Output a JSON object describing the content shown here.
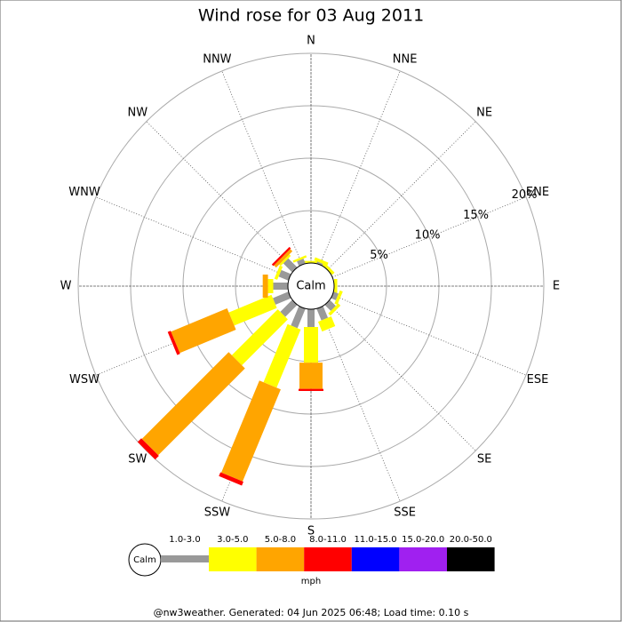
{
  "chart_data": {
    "type": "windrose",
    "title": "Wind rose for 03 Aug 2011",
    "categories": [
      "N",
      "NNE",
      "NE",
      "ENE",
      "E",
      "ESE",
      "SE",
      "SSE",
      "S",
      "SSW",
      "SW",
      "WSW",
      "W",
      "WNW",
      "NW",
      "NNW"
    ],
    "calm_label": "Calm",
    "series": [
      {
        "name": "1.0-3.0",
        "color": "#999999",
        "values": [
          0,
          0.2,
          0,
          0,
          0,
          0.5,
          0.8,
          1.2,
          1.7,
          2.0,
          1.6,
          1.6,
          1.4,
          1.0,
          1.2,
          0.5
        ]
      },
      {
        "name": "3.0-5.0",
        "color": "#ffff00",
        "values": [
          0.2,
          0.3,
          0.3,
          0,
          0.3,
          0.3,
          0.3,
          1.0,
          3.4,
          6.0,
          6.2,
          4.4,
          0.5,
          0.3,
          0.2,
          0.2
        ]
      },
      {
        "name": "5.0-8.0",
        "color": "#ffa500",
        "values": [
          0,
          0,
          0,
          0,
          0,
          0,
          0,
          0,
          2.5,
          9.5,
          11.7,
          5.8,
          0.5,
          0,
          0.3,
          0
        ]
      },
      {
        "name": "8.0-11.0",
        "color": "#ff0000",
        "values": [
          0,
          0,
          0,
          0,
          0,
          0,
          0,
          0,
          0.2,
          0.4,
          0.5,
          0.3,
          0,
          0,
          0.2,
          0
        ]
      },
      {
        "name": "11.0-15.0",
        "color": "#0000ff",
        "values": [
          0,
          0,
          0,
          0,
          0,
          0,
          0,
          0,
          0,
          0,
          0,
          0,
          0,
          0,
          0,
          0
        ]
      },
      {
        "name": "15.0-20.0",
        "color": "#a020f0",
        "values": [
          0,
          0,
          0,
          0,
          0,
          0,
          0,
          0,
          0,
          0,
          0,
          0,
          0,
          0,
          0,
          0
        ]
      },
      {
        "name": "20.0-50.0",
        "color": "#000000",
        "values": [
          0,
          0,
          0,
          0,
          0,
          0,
          0,
          0,
          0,
          0,
          0,
          0,
          0,
          0,
          0,
          0
        ]
      }
    ],
    "rlim": [
      0,
      20
    ],
    "rticks": [
      {
        "value": 5,
        "label": "5%"
      },
      {
        "value": 10,
        "label": "10%"
      },
      {
        "value": 15,
        "label": "15%"
      },
      {
        "value": 20,
        "label": "20%"
      }
    ],
    "unit_label": "mph",
    "footer": "@nw3weather. Generated: 04 Jun 2025 06:48; Load time: 0.10 s"
  }
}
